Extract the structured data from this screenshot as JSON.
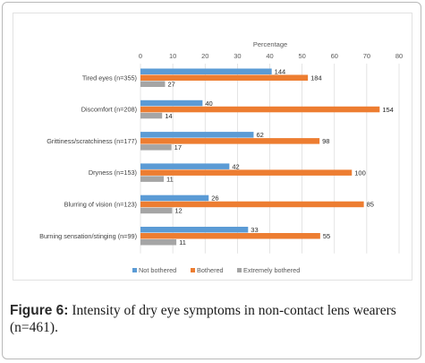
{
  "chart_data": {
    "type": "bar",
    "orientation": "horizontal",
    "xlabel": "Percentage",
    "xlim": [
      0,
      80
    ],
    "xticks": [
      0,
      10,
      20,
      30,
      40,
      50,
      60,
      70,
      80
    ],
    "grid": true,
    "legend_position": "bottom",
    "categories": [
      "Tired eyes (n=355)",
      "Discomfort (n=208)",
      "Grittiness/scratchiness (n=177)",
      "Dryness (n=153)",
      "Blurring of vision (n=123)",
      "Burning sensation/stinging (n=99)"
    ],
    "series": [
      {
        "name": "Not bothered",
        "color": "#5b9bd5",
        "values": [
          40.6,
          19.2,
          35.0,
          27.5,
          21.1,
          33.3
        ],
        "labels": [
          "144",
          "40",
          "62",
          "42",
          "26",
          "33"
        ]
      },
      {
        "name": "Bothered",
        "color": "#ed7d31",
        "values": [
          51.8,
          74.0,
          55.4,
          65.4,
          69.1,
          55.6
        ],
        "labels": [
          "184",
          "154",
          "98",
          "100",
          "85",
          "55"
        ]
      },
      {
        "name": "Extremely bothered",
        "color": "#a5a5a5",
        "values": [
          7.6,
          6.7,
          9.6,
          7.2,
          9.8,
          11.1
        ],
        "labels": [
          "27",
          "14",
          "17",
          "11",
          "12",
          "11"
        ]
      }
    ]
  },
  "caption": {
    "label": "Figure 6:",
    "text": " Intensity of dry eye symptoms in non-contact lens wearers (n=461)."
  }
}
